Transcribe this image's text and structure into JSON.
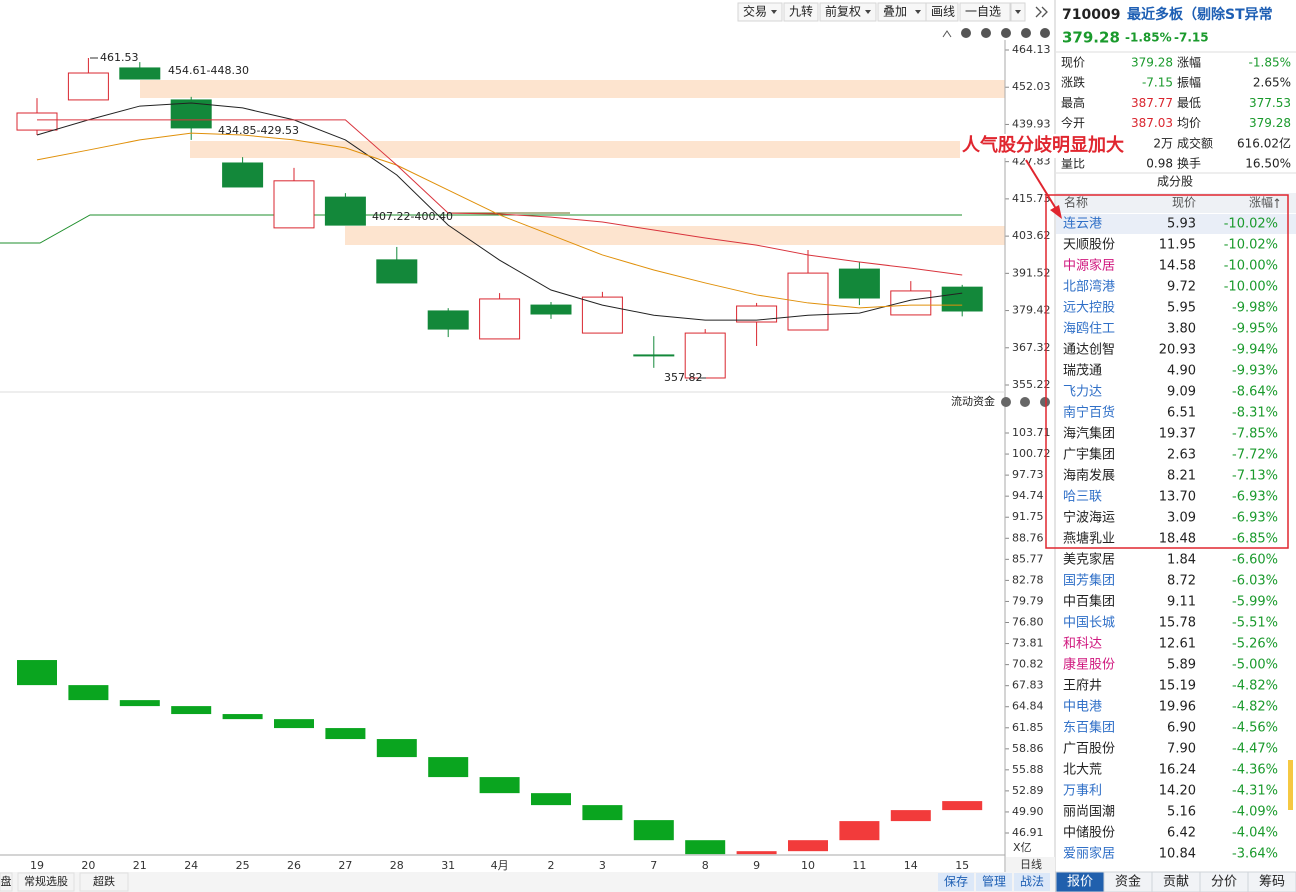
{
  "toolbar": {
    "buttons": [
      "交易",
      "九转",
      "前复权",
      "叠加",
      "画线",
      "一自选"
    ]
  },
  "chart_data": [
    {
      "type": "candlestick",
      "categories": [
        "19",
        "20",
        "21",
        "24",
        "25",
        "26",
        "27",
        "28",
        "31",
        "4月",
        "2",
        "3",
        "7",
        "8",
        "9",
        "10",
        "11",
        "14",
        "15"
      ],
      "open": [
        438.1,
        447.9,
        458.3,
        447.9,
        427.4,
        406.3,
        416.3,
        395.9,
        379.3,
        370.2,
        381.2,
        372.1,
        365.0,
        357.5,
        375.7,
        373.1,
        392.9,
        378.0,
        387.03
      ],
      "high": [
        448.5,
        461.53,
        460.2,
        448.9,
        429.3,
        425.8,
        417.6,
        400.1,
        380.2,
        385.1,
        382.2,
        385.5,
        371.1,
        373.4,
        381.9,
        399.1,
        395.2,
        389.0,
        387.77
      ],
      "low": [
        436.5,
        447.9,
        454.7,
        434.9,
        419.6,
        406.3,
        407.2,
        388.4,
        370.8,
        370.2,
        376.7,
        372.1,
        360.8,
        357.82,
        367.9,
        373.1,
        381.2,
        378.0,
        377.53
      ],
      "close": [
        443.65,
        456.65,
        454.7,
        438.8,
        419.6,
        421.6,
        407.2,
        388.4,
        373.4,
        383.2,
        378.3,
        383.8,
        364.9,
        372.1,
        380.9,
        391.6,
        383.5,
        385.8,
        379.28
      ],
      "up_color": "#d9262f",
      "down_color": "#13883a",
      "series": [
        {
          "color": "#222222",
          "values": [
            436.5,
            441.4,
            445.9,
            446.9,
            445.3,
            441.4,
            434.9,
            423.5,
            407.2,
            395.8,
            386.1,
            381.2,
            377.9,
            376.3,
            376.3,
            377.9,
            378.6,
            382.8,
            385.1
          ]
        },
        {
          "color": "#e0900a",
          "values": [
            428.4,
            431.6,
            434.9,
            437.1,
            436.5,
            434.9,
            432.3,
            426.7,
            418.6,
            410.5,
            404.0,
            397.5,
            392.6,
            388.4,
            384.5,
            381.9,
            380.3,
            381.2,
            381.2
          ]
        },
        {
          "color": "#d9343d",
          "values": [
            441.4,
            441.4,
            441.4,
            441.4,
            441.4,
            441.4,
            441.4,
            426.7,
            411.1,
            410.8,
            409.8,
            408.2,
            405.6,
            403.0,
            400.7,
            397.5,
            395.2,
            393.2,
            391.0
          ]
        }
      ],
      "annotations": [
        "461.53",
        "454.61-448.30",
        "434.85-429.53",
        "407.22-400.40",
        "357.82"
      ],
      "ylim": [
        355.22,
        464.13
      ],
      "yticks": [
        464.13,
        452.03,
        439.93,
        427.83,
        415.73,
        403.62,
        391.52,
        379.42,
        367.32,
        355.22
      ]
    },
    {
      "type": "waterfall",
      "title": "流动资金",
      "unit_label": "X亿",
      "values": [
        71.47,
        67.91,
        65.78,
        64.93,
        63.8,
        63.08,
        61.81,
        60.25,
        57.69,
        54.85,
        52.57,
        50.87,
        48.74,
        45.89,
        43.91,
        44.33,
        45.89,
        48.6,
        50.16,
        51.44
      ],
      "up_color": "#f23b3b",
      "down_color": "#0aa51f",
      "ylim": [
        46.91,
        103.71
      ],
      "yticks": [
        103.71,
        100.72,
        97.73,
        94.74,
        91.75,
        88.76,
        85.77,
        82.78,
        79.79,
        {
          "value": 76.8,
          "label": "76.80"
        },
        73.81,
        70.82,
        67.83,
        64.84,
        61.85,
        58.86,
        55.88,
        52.89,
        {
          "value": 49.9,
          "label": "49.90"
        },
        46.91
      ]
    }
  ],
  "period": "日线",
  "quote": {
    "code": "710009",
    "name": "最近多板（剔除ST异常",
    "price": "379.28",
    "change_pct": "-1.85%",
    "change": "-7.15"
  },
  "stats": [
    {
      "label": "现价",
      "value": "379.28",
      "color": "#1a9a2c",
      "label2": "涨幅",
      "value2": "-1.85%",
      "color2": "#1a9a2c"
    },
    {
      "label": "涨跌",
      "value": "-7.15",
      "color": "#1a9a2c",
      "label2": "振幅",
      "value2": "2.65%",
      "color2": "#222222"
    },
    {
      "label": "最高",
      "value": "387.77",
      "color": "#d9262f",
      "label2": "最低",
      "value2": "377.53",
      "color2": "#1a9a2c"
    },
    {
      "label": "今开",
      "value": "387.03",
      "color": "#d9262f",
      "label2": "均价",
      "value2": "379.28",
      "color2": "#1a9a2c"
    },
    {
      "value": "2万",
      "color": "#222222",
      "label2": "成交额",
      "value2": "616.02亿",
      "color2": "#222222"
    },
    {
      "label": "量比",
      "value": "0.98",
      "color": "#222222",
      "label2": "换手",
      "value2": "16.50%",
      "color2": "#222222"
    }
  ],
  "constituents": {
    "title": "成分股",
    "columns": [
      "名称",
      "现价",
      "涨幅"
    ],
    "rows": [
      {
        "name": "连云港",
        "price": "5.93",
        "change": "-10.02%",
        "color": "#2f6fc7"
      },
      {
        "name": "天顺股份",
        "price": "11.95",
        "change": "-10.02%",
        "color": "#222222"
      },
      {
        "name": "中源家居",
        "price": "14.58",
        "change": "-10.00%",
        "color": "#d0187f"
      },
      {
        "name": "北部湾港",
        "price": "9.72",
        "change": "-10.00%",
        "color": "#2f6fc7"
      },
      {
        "name": "远大控股",
        "price": "5.95",
        "change": "-9.98%",
        "color": "#2f6fc7"
      },
      {
        "name": "海鸥住工",
        "price": "3.80",
        "change": "-9.95%",
        "color": "#2f6fc7"
      },
      {
        "name": "通达创智",
        "price": "20.93",
        "change": "-9.94%",
        "color": "#222222"
      },
      {
        "name": "瑞茂通",
        "price": "4.90",
        "change": "-9.93%",
        "color": "#222222"
      },
      {
        "name": "飞力达",
        "price": "9.09",
        "change": "-8.64%",
        "color": "#2f6fc7"
      },
      {
        "name": "南宁百货",
        "price": "6.51",
        "change": "-8.31%",
        "color": "#2f6fc7"
      },
      {
        "name": "海汽集团",
        "price": "19.37",
        "change": "-7.85%",
        "color": "#222222"
      },
      {
        "name": "广宇集团",
        "price": "2.63",
        "change": "-7.72%",
        "color": "#222222"
      },
      {
        "name": "海南发展",
        "price": "8.21",
        "change": "-7.13%",
        "color": "#222222"
      },
      {
        "name": "哈三联",
        "price": "13.70",
        "change": "-6.93%",
        "color": "#2f6fc7"
      },
      {
        "name": "宁波海运",
        "price": "3.09",
        "change": "-6.93%",
        "color": "#222222"
      },
      {
        "name": "燕塘乳业",
        "price": "18.48",
        "change": "-6.85%",
        "color": "#222222"
      },
      {
        "name": "美克家居",
        "price": "1.84",
        "change": "-6.60%",
        "color": "#222222"
      },
      {
        "name": "国芳集团",
        "price": "8.72",
        "change": "-6.03%",
        "color": "#2f6fc7"
      },
      {
        "name": "中百集团",
        "price": "9.11",
        "change": "-5.99%",
        "color": "#222222"
      },
      {
        "name": "中国长城",
        "price": "15.78",
        "change": "-5.51%",
        "color": "#2f6fc7"
      },
      {
        "name": "和科达",
        "price": "12.61",
        "change": "-5.26%",
        "color": "#d0187f"
      },
      {
        "name": "康星股份",
        "price": "5.89",
        "change": "-5.00%",
        "color": "#d0187f"
      },
      {
        "name": "王府井",
        "price": "15.19",
        "change": "-4.82%",
        "color": "#222222"
      },
      {
        "name": "中电港",
        "price": "19.96",
        "change": "-4.82%",
        "color": "#2f6fc7"
      },
      {
        "name": "东百集团",
        "price": "6.90",
        "change": "-4.56%",
        "color": "#2f6fc7"
      },
      {
        "name": "广百股份",
        "price": "7.90",
        "change": "-4.47%",
        "color": "#222222"
      },
      {
        "name": "北大荒",
        "price": "16.24",
        "change": "-4.36%",
        "color": "#222222"
      },
      {
        "name": "万事利",
        "price": "14.20",
        "change": "-4.31%",
        "color": "#2f6fc7"
      },
      {
        "name": "丽尚国潮",
        "price": "5.16",
        "change": "-4.09%",
        "color": "#222222"
      },
      {
        "name": "中储股份",
        "price": "6.42",
        "change": "-4.04%",
        "color": "#222222"
      },
      {
        "name": "爱丽家居",
        "price": "10.84",
        "change": "-3.64%",
        "color": "#2f6fc7"
      }
    ]
  },
  "annotation": "人气股分歧明显加大",
  "tabs": [
    "报价",
    "资金",
    "贡献",
    "分价",
    "筹码"
  ],
  "bottom_left": [
    "盘",
    "常规选股",
    "超跌"
  ],
  "bottom_right": [
    "保存",
    "管理",
    "战法"
  ]
}
